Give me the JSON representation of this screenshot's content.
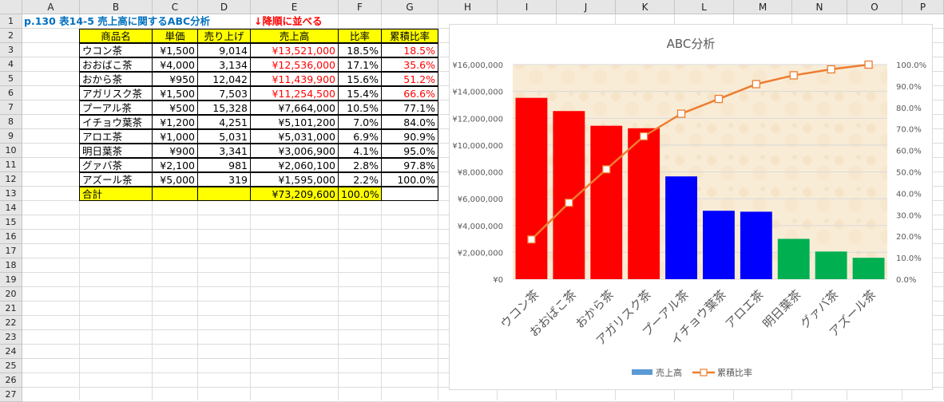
{
  "sheet": {
    "columns": [
      "A",
      "B",
      "C",
      "D",
      "E",
      "F",
      "G",
      "H",
      "I",
      "J",
      "K",
      "L",
      "M",
      "N",
      "O",
      "P"
    ],
    "rows": [
      "1",
      "2",
      "3",
      "4",
      "5",
      "6",
      "7",
      "8",
      "9",
      "10",
      "11",
      "12",
      "13",
      "14",
      "15",
      "16",
      "17",
      "18",
      "19",
      "20",
      "21",
      "22",
      "23",
      "24",
      "25",
      "26",
      "27"
    ],
    "title": "p.130 表14-5 売上高に関するABC分析",
    "note": "↓降順に並べる",
    "headers": [
      "商品名",
      "単価",
      "売り上げ",
      "売上高",
      "比率",
      "累積比率"
    ],
    "items": [
      {
        "name": "ウコン茶",
        "price": "¥1,500",
        "qty": "9,014",
        "sales": "¥13,521,000",
        "ratio": "18.5%",
        "cum": "18.5%",
        "red": true
      },
      {
        "name": "おおばこ茶",
        "price": "¥4,000",
        "qty": "3,134",
        "sales": "¥12,536,000",
        "ratio": "17.1%",
        "cum": "35.6%",
        "red": true
      },
      {
        "name": "おから茶",
        "price": "¥950",
        "qty": "12,042",
        "sales": "¥11,439,900",
        "ratio": "15.6%",
        "cum": "51.2%",
        "red": true
      },
      {
        "name": "アガリスク茶",
        "price": "¥1,500",
        "qty": "7,503",
        "sales": "¥11,254,500",
        "ratio": "15.4%",
        "cum": "66.6%",
        "red": true
      },
      {
        "name": "プーアル茶",
        "price": "¥500",
        "qty": "15,328",
        "sales": "¥7,664,000",
        "ratio": "10.5%",
        "cum": "77.1%",
        "red": false
      },
      {
        "name": "イチョウ葉茶",
        "price": "¥1,200",
        "qty": "4,251",
        "sales": "¥5,101,200",
        "ratio": "7.0%",
        "cum": "84.0%",
        "red": false
      },
      {
        "name": "アロエ茶",
        "price": "¥1,000",
        "qty": "5,031",
        "sales": "¥5,031,000",
        "ratio": "6.9%",
        "cum": "90.9%",
        "red": false
      },
      {
        "name": "明日葉茶",
        "price": "¥900",
        "qty": "3,341",
        "sales": "¥3,006,900",
        "ratio": "4.1%",
        "cum": "95.0%",
        "red": false
      },
      {
        "name": "グァバ茶",
        "price": "¥2,100",
        "qty": "981",
        "sales": "¥2,060,100",
        "ratio": "2.8%",
        "cum": "97.8%",
        "red": false
      },
      {
        "name": "アズール茶",
        "price": "¥5,000",
        "qty": "319",
        "sales": "¥1,595,000",
        "ratio": "2.2%",
        "cum": "100.0%",
        "red": false
      }
    ],
    "total": {
      "label": "合計",
      "sales": "¥73,209,600",
      "ratio": "100.0%"
    }
  },
  "colors": {
    "a": "#ff0000",
    "b": "#0000ff",
    "c": "#00b050",
    "line": "#ed7d31",
    "legend_bar": "#5b9bd5"
  },
  "chart_data": {
    "type": "bar",
    "title": "ABC分析",
    "categories": [
      "ウコン茶",
      "おおばこ茶",
      "おから茶",
      "アガリスク茶",
      "プーアル茶",
      "イチョウ葉茶",
      "アロエ茶",
      "明日葉茶",
      "グァバ茶",
      "アズール茶"
    ],
    "series": [
      {
        "name": "売上高",
        "type": "bar",
        "axis": "left",
        "values": [
          13521000,
          12536000,
          11439900,
          11254500,
          7664000,
          5101200,
          5031000,
          3006900,
          2060100,
          1595000
        ],
        "bar_colors": [
          "a",
          "a",
          "a",
          "a",
          "b",
          "b",
          "b",
          "c",
          "c",
          "c"
        ]
      },
      {
        "name": "累積比率",
        "type": "line",
        "axis": "right",
        "values": [
          0.185,
          0.356,
          0.512,
          0.666,
          0.771,
          0.84,
          0.909,
          0.95,
          0.978,
          1.0
        ]
      }
    ],
    "y_left": {
      "min": 0,
      "max": 16000000,
      "ticks": [
        "¥0",
        "¥2,000,000",
        "¥4,000,000",
        "¥6,000,000",
        "¥8,000,000",
        "¥10,000,000",
        "¥12,000,000",
        "¥14,000,000",
        "¥16,000,000"
      ]
    },
    "y_right": {
      "min": 0,
      "max": 1,
      "ticks": [
        "0.0%",
        "10.0%",
        "20.0%",
        "30.0%",
        "40.0%",
        "50.0%",
        "60.0%",
        "70.0%",
        "80.0%",
        "90.0%",
        "100.0%"
      ]
    },
    "grid": true,
    "legend": "bottom"
  }
}
